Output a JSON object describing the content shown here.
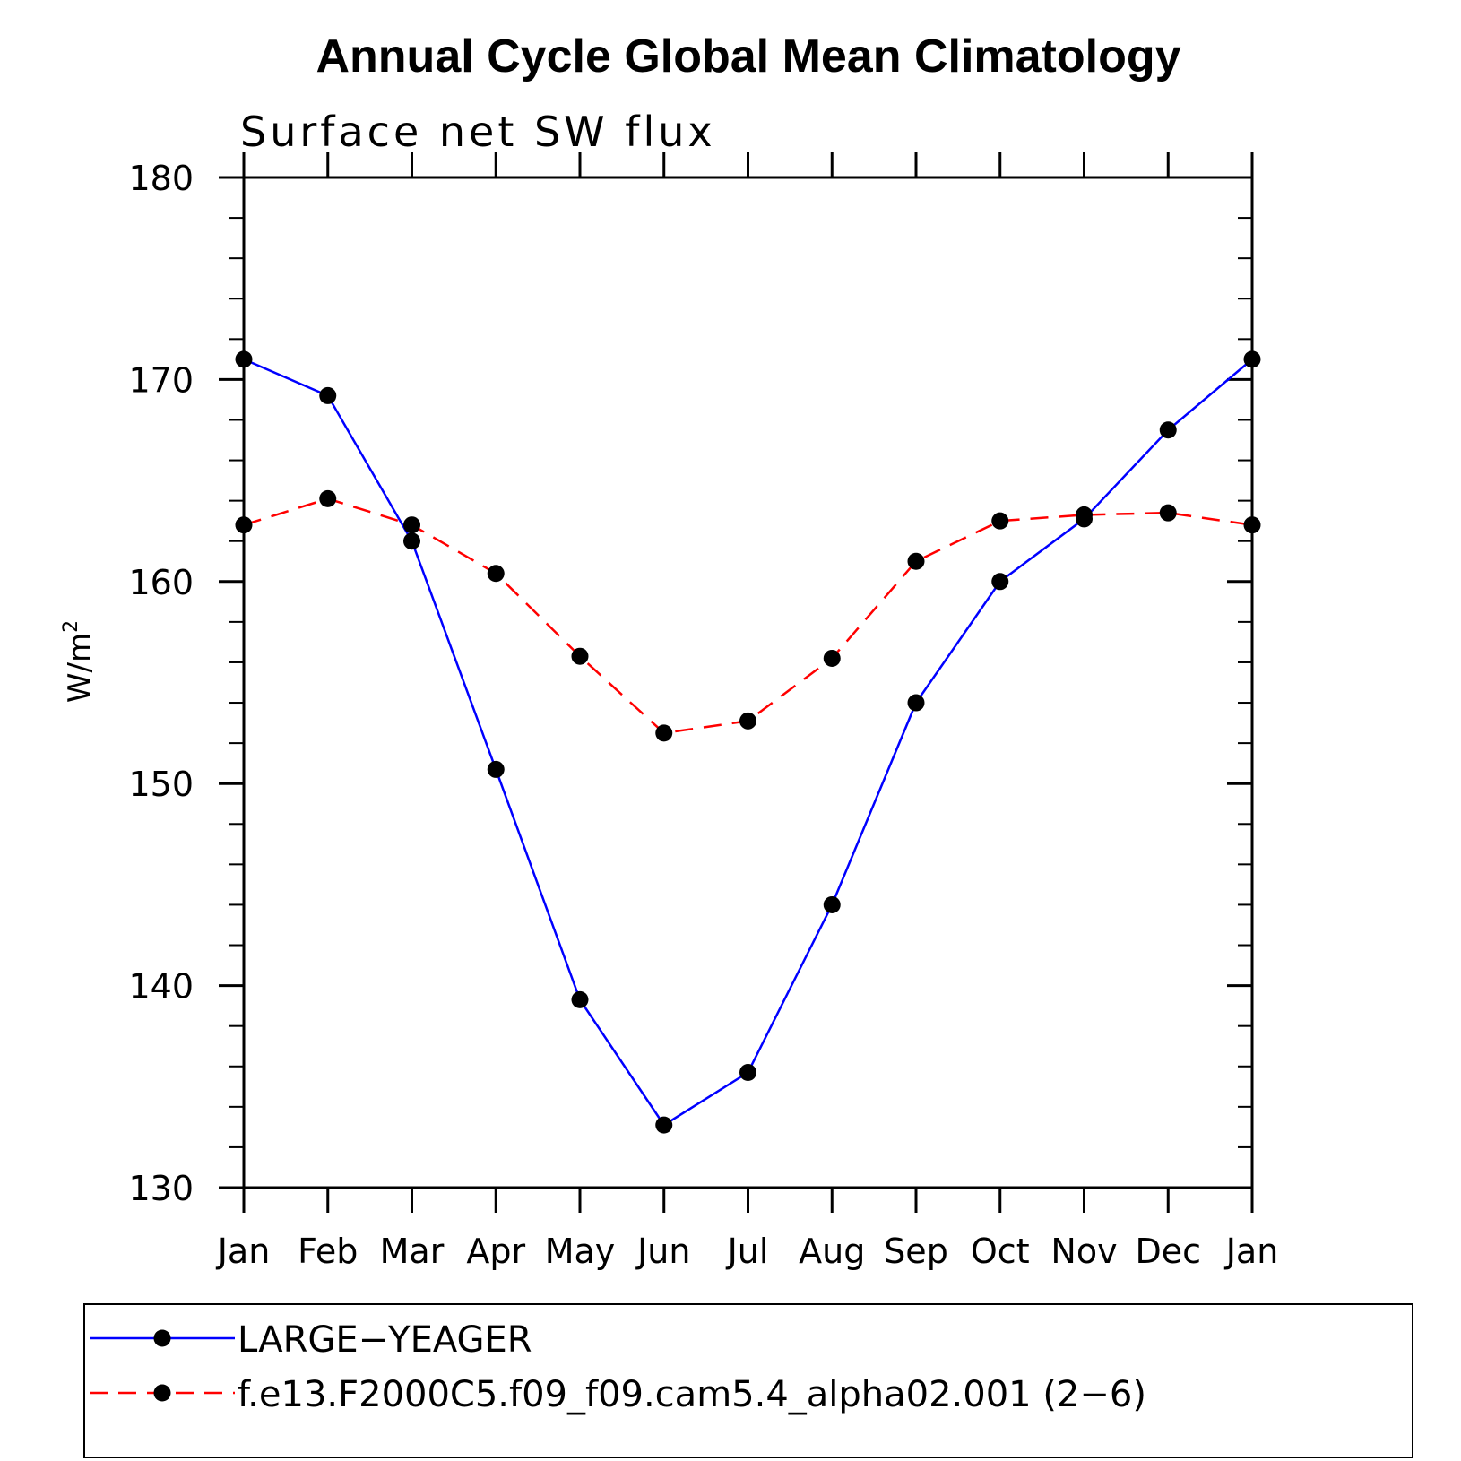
{
  "chart_data": {
    "type": "line",
    "title": "Annual Cycle Global Mean Climatology",
    "subtitle": "Surface net SW flux",
    "ylabel_base": "W/m",
    "ylabel_sup": "2",
    "xlabel": "",
    "categories": [
      "Jan",
      "Feb",
      "Mar",
      "Apr",
      "May",
      "Jun",
      "Jul",
      "Aug",
      "Sep",
      "Oct",
      "Nov",
      "Dec",
      "Jan"
    ],
    "ylim": [
      130,
      180
    ],
    "yticks": [
      130,
      140,
      150,
      160,
      170,
      180
    ],
    "yticklabels": [
      "130",
      "140",
      "150",
      "160",
      "170",
      "180"
    ],
    "series": [
      {
        "name": "LARGE−YEAGER",
        "color": "#0000ff",
        "dash": "solid",
        "values": [
          171.0,
          169.2,
          162.0,
          150.7,
          139.3,
          133.1,
          135.7,
          144.0,
          154.0,
          160.0,
          163.1,
          167.5,
          171.0
        ]
      },
      {
        "name": "f.e13.F2000C5.f09_f09.cam5.4_alpha02.001 (2−6)",
        "color": "#ff0000",
        "dash": "dashed",
        "values": [
          162.8,
          164.1,
          162.8,
          160.4,
          156.3,
          152.5,
          153.1,
          156.2,
          161.0,
          163.0,
          163.3,
          163.4,
          162.8
        ]
      }
    ],
    "grid": false,
    "legend_position": "bottom"
  }
}
